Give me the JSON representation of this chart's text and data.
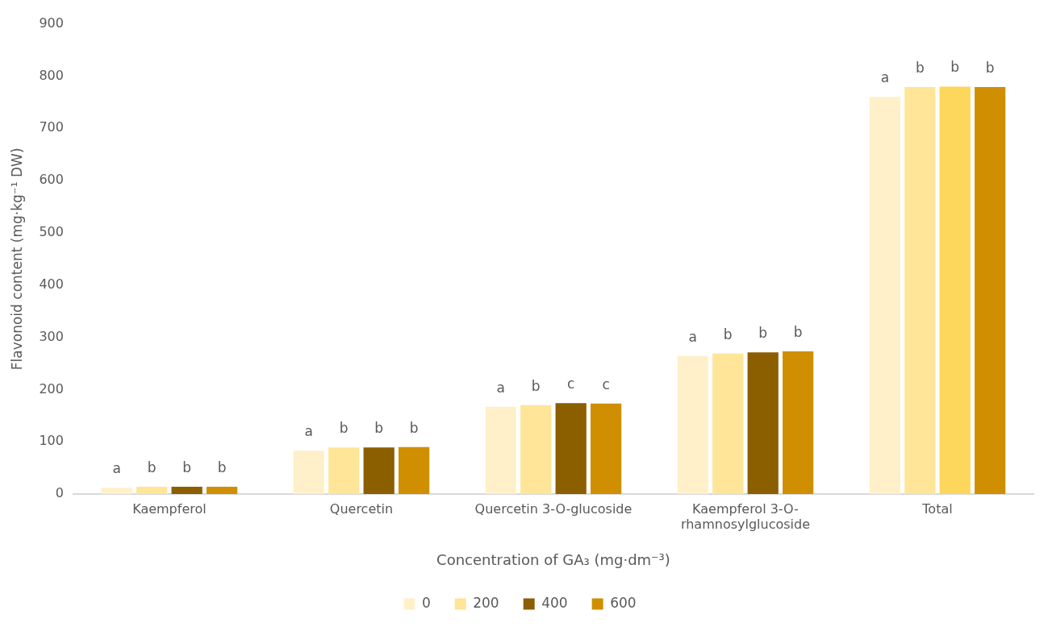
{
  "chart_data": {
    "type": "bar",
    "xlabel": "Concentration of GA₃ (mg·dm⁻³)",
    "ylabel": "Flavonoid content (mg·kg⁻¹ DW)",
    "categories": [
      "Kaempferol",
      "Quercetin",
      "Quercetin 3-O-glucoside",
      "Kaempferol 3-O-rhamnosylglucoside",
      "Total"
    ],
    "series": [
      {
        "name": "0",
        "color": "#fff0c9",
        "values": [
          12,
          83,
          167,
          264,
          760
        ],
        "value_labels": [
          "a",
          "a",
          "a",
          "a",
          "a"
        ]
      },
      {
        "name": "200",
        "color": "#ffe597",
        "values": [
          14,
          89,
          170,
          269,
          779
        ],
        "value_labels": [
          "b",
          "b",
          "b",
          "b",
          "b"
        ]
      },
      {
        "name": "400",
        "color": "#8b5e00",
        "colors": [
          "#8b5e00",
          "#8b5e00",
          "#8b5e00",
          "#8b5e00",
          "#fdd65c"
        ],
        "values": [
          14,
          89,
          174,
          271,
          780
        ],
        "value_labels": [
          "b",
          "b",
          "c",
          "b",
          "b"
        ]
      },
      {
        "name": "600",
        "color": "#cf8f00",
        "values": [
          14,
          90,
          173,
          273,
          779
        ],
        "value_labels": [
          "b",
          "b",
          "c",
          "b",
          "b"
        ]
      }
    ],
    "ylim": [
      0,
      900
    ],
    "yticks": [
      0,
      100,
      200,
      300,
      400,
      500,
      600,
      700,
      800,
      900
    ],
    "grid": false,
    "legend": "bottom"
  }
}
